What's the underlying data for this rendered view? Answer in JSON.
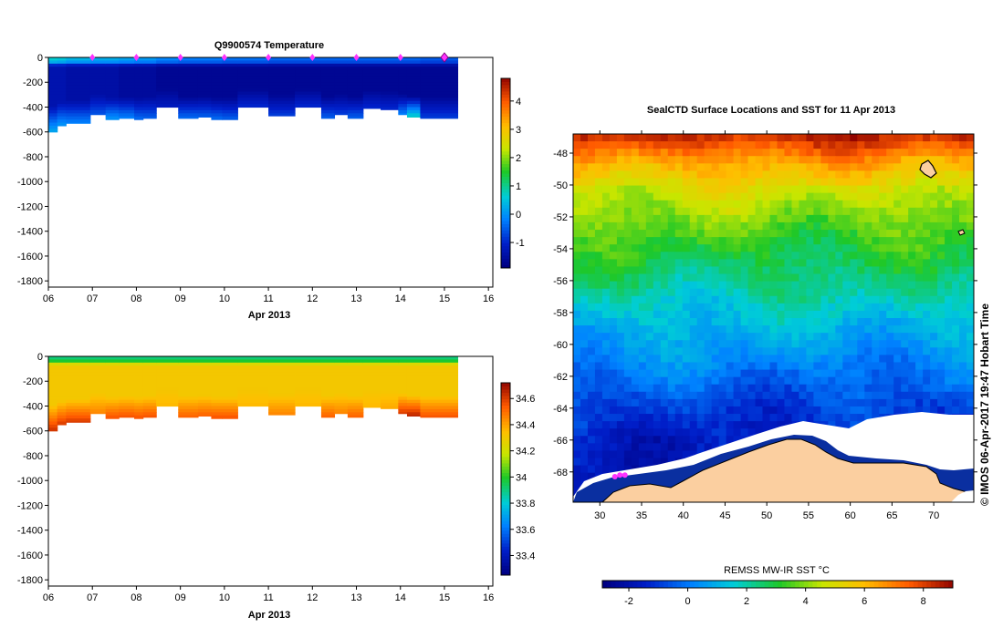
{
  "chart_data": [
    {
      "id": "temp_section",
      "type": "heatmap",
      "title": "Q9900574  Temperature",
      "xlabel": "Apr 2013",
      "x_ticks": [
        "06",
        "07",
        "08",
        "09",
        "10",
        "11",
        "12",
        "13",
        "14",
        "15",
        "16"
      ],
      "xlim": [
        6,
        16.1
      ],
      "y_ticks": [
        0,
        -200,
        -400,
        -600,
        -800,
        -1000,
        -1200,
        -1400,
        -1600,
        -1800
      ],
      "ylim": [
        -1850,
        0
      ],
      "colorbar": {
        "ticks": [
          -1,
          0,
          1,
          2,
          3,
          4
        ],
        "min": -1.9,
        "max": 4.8
      },
      "surface_markers": [
        7,
        8,
        9,
        10,
        11,
        12,
        13,
        14
      ],
      "latest_marker": 15,
      "profiles": [
        {
          "start": 6.0,
          "end": 6.2,
          "max_depth": -600,
          "top": 0.6,
          "core": -1.4,
          "bottom": 0.2
        },
        {
          "start": 6.2,
          "end": 6.4,
          "max_depth": -550,
          "top": 0.5,
          "core": -1.4,
          "bottom": 0.0
        },
        {
          "start": 6.4,
          "end": 6.95,
          "max_depth": -530,
          "top": 0.3,
          "core": -1.5,
          "bottom": -0.2
        },
        {
          "start": 6.95,
          "end": 7.3,
          "max_depth": -460,
          "top": 0.2,
          "core": -1.5,
          "bottom": -0.6
        },
        {
          "start": 7.3,
          "end": 7.6,
          "max_depth": -500,
          "top": 0.2,
          "core": -1.5,
          "bottom": 0.0
        },
        {
          "start": 7.6,
          "end": 7.95,
          "max_depth": -490,
          "top": 0.1,
          "core": -1.6,
          "bottom": -0.2
        },
        {
          "start": 7.95,
          "end": 8.15,
          "max_depth": -500,
          "top": 0.0,
          "core": -1.6,
          "bottom": -0.4
        },
        {
          "start": 8.15,
          "end": 8.45,
          "max_depth": -490,
          "top": 0.0,
          "core": -1.6,
          "bottom": -0.5
        },
        {
          "start": 8.45,
          "end": 8.95,
          "max_depth": -400,
          "top": -0.2,
          "core": -1.7,
          "bottom": -1.2
        },
        {
          "start": 8.95,
          "end": 9.4,
          "max_depth": -490,
          "top": -0.3,
          "core": -1.7,
          "bottom": -0.4
        },
        {
          "start": 9.4,
          "end": 9.7,
          "max_depth": -480,
          "top": -0.3,
          "core": -1.7,
          "bottom": -0.5
        },
        {
          "start": 9.7,
          "end": 9.95,
          "max_depth": -500,
          "top": -0.3,
          "core": -1.7,
          "bottom": -0.4
        },
        {
          "start": 9.95,
          "end": 10.3,
          "max_depth": -500,
          "top": -0.4,
          "core": -1.7,
          "bottom": -0.5
        },
        {
          "start": 10.3,
          "end": 11.0,
          "max_depth": -400,
          "top": -0.4,
          "core": -1.7,
          "bottom": -1.0
        },
        {
          "start": 11.0,
          "end": 11.6,
          "max_depth": -470,
          "top": -0.5,
          "core": -1.7,
          "bottom": -0.8
        },
        {
          "start": 11.6,
          "end": 12.2,
          "max_depth": -400,
          "top": -0.5,
          "core": -1.7,
          "bottom": -1.0
        },
        {
          "start": 12.2,
          "end": 12.5,
          "max_depth": -490,
          "top": -0.5,
          "core": -1.7,
          "bottom": -0.5
        },
        {
          "start": 12.5,
          "end": 12.8,
          "max_depth": -460,
          "top": -0.5,
          "core": -1.7,
          "bottom": -0.8
        },
        {
          "start": 12.8,
          "end": 13.15,
          "max_depth": -490,
          "top": -0.5,
          "core": -1.7,
          "bottom": -0.5
        },
        {
          "start": 13.15,
          "end": 13.55,
          "max_depth": -410,
          "top": -0.5,
          "core": -1.7,
          "bottom": -1.0
        },
        {
          "start": 13.55,
          "end": 13.95,
          "max_depth": -420,
          "top": -0.5,
          "core": -1.7,
          "bottom": -1.0
        },
        {
          "start": 13.95,
          "end": 14.15,
          "max_depth": -460,
          "top": -0.5,
          "core": -1.7,
          "bottom": -0.2
        },
        {
          "start": 14.15,
          "end": 14.45,
          "max_depth": -480,
          "top": -0.5,
          "core": -1.7,
          "bottom": 0.7
        },
        {
          "start": 14.45,
          "end": 15.3,
          "max_depth": -490,
          "top": -0.6,
          "core": -1.7,
          "bottom": -0.8
        }
      ]
    },
    {
      "id": "sal_section",
      "type": "heatmap",
      "title": "",
      "xlabel": "Apr 2013",
      "x_ticks": [
        "06",
        "07",
        "08",
        "09",
        "10",
        "11",
        "12",
        "13",
        "14",
        "15",
        "16"
      ],
      "xlim": [
        6,
        16.1
      ],
      "y_ticks": [
        0,
        -200,
        -400,
        -600,
        -800,
        -1000,
        -1200,
        -1400,
        -1600,
        -1800
      ],
      "ylim": [
        -1850,
        0
      ],
      "colorbar": {
        "ticks": [
          33.4,
          33.6,
          33.8,
          34,
          34.2,
          34.4,
          34.6
        ],
        "min": 33.25,
        "max": 34.72
      },
      "profiles": [
        {
          "start": 6.0,
          "end": 6.2,
          "max_depth": -600,
          "top": 33.9,
          "core": 34.3,
          "bottom": 34.62
        },
        {
          "start": 6.2,
          "end": 6.4,
          "max_depth": -550,
          "top": 33.9,
          "core": 34.3,
          "bottom": 34.6
        },
        {
          "start": 6.4,
          "end": 6.95,
          "max_depth": -530,
          "top": 33.9,
          "core": 34.3,
          "bottom": 34.6
        },
        {
          "start": 6.95,
          "end": 7.3,
          "max_depth": -460,
          "top": 33.9,
          "core": 34.3,
          "bottom": 34.45
        },
        {
          "start": 7.3,
          "end": 7.6,
          "max_depth": -500,
          "top": 33.9,
          "core": 34.3,
          "bottom": 34.55
        },
        {
          "start": 7.6,
          "end": 7.95,
          "max_depth": -490,
          "top": 33.9,
          "core": 34.3,
          "bottom": 34.55
        },
        {
          "start": 7.95,
          "end": 8.15,
          "max_depth": -500,
          "top": 33.9,
          "core": 34.3,
          "bottom": 34.55
        },
        {
          "start": 8.15,
          "end": 8.45,
          "max_depth": -490,
          "top": 33.9,
          "core": 34.3,
          "bottom": 34.55
        },
        {
          "start": 8.45,
          "end": 8.95,
          "max_depth": -400,
          "top": 33.9,
          "core": 34.3,
          "bottom": 34.35
        },
        {
          "start": 8.95,
          "end": 9.4,
          "max_depth": -490,
          "top": 33.9,
          "core": 34.3,
          "bottom": 34.52
        },
        {
          "start": 9.4,
          "end": 9.7,
          "max_depth": -480,
          "top": 33.9,
          "core": 34.3,
          "bottom": 34.52
        },
        {
          "start": 9.7,
          "end": 9.95,
          "max_depth": -500,
          "top": 33.9,
          "core": 34.3,
          "bottom": 34.55
        },
        {
          "start": 9.95,
          "end": 10.3,
          "max_depth": -500,
          "top": 33.9,
          "core": 34.3,
          "bottom": 34.55
        },
        {
          "start": 10.3,
          "end": 11.0,
          "max_depth": -400,
          "top": 33.9,
          "core": 34.3,
          "bottom": 34.35
        },
        {
          "start": 11.0,
          "end": 11.6,
          "max_depth": -470,
          "top": 33.9,
          "core": 34.3,
          "bottom": 34.45
        },
        {
          "start": 11.6,
          "end": 12.2,
          "max_depth": -400,
          "top": 33.9,
          "core": 34.3,
          "bottom": 34.35
        },
        {
          "start": 12.2,
          "end": 12.5,
          "max_depth": -490,
          "top": 33.9,
          "core": 34.3,
          "bottom": 34.52
        },
        {
          "start": 12.5,
          "end": 12.8,
          "max_depth": -460,
          "top": 33.9,
          "core": 34.3,
          "bottom": 34.45
        },
        {
          "start": 12.8,
          "end": 13.15,
          "max_depth": -490,
          "top": 33.9,
          "core": 34.3,
          "bottom": 34.52
        },
        {
          "start": 13.15,
          "end": 13.55,
          "max_depth": -410,
          "top": 33.9,
          "core": 34.3,
          "bottom": 34.35
        },
        {
          "start": 13.55,
          "end": 13.95,
          "max_depth": -420,
          "top": 33.9,
          "core": 34.3,
          "bottom": 34.38
        },
        {
          "start": 13.95,
          "end": 14.15,
          "max_depth": -460,
          "top": 33.9,
          "core": 34.3,
          "bottom": 34.6
        },
        {
          "start": 14.15,
          "end": 14.45,
          "max_depth": -480,
          "top": 33.9,
          "core": 34.3,
          "bottom": 34.65
        },
        {
          "start": 14.45,
          "end": 15.3,
          "max_depth": -490,
          "top": 33.9,
          "core": 34.3,
          "bottom": 34.55
        }
      ]
    },
    {
      "id": "sst_map",
      "type": "heatmap",
      "title": "SealCTD Surface Locations and SST for 11 Apr 2013",
      "x_ticks": [
        "30",
        "35",
        "40",
        "45",
        "50",
        "55",
        "60",
        "65",
        "70"
      ],
      "xlim": [
        26.8,
        74.8
      ],
      "y_ticks": [
        "-48",
        "-50",
        "-52",
        "-54",
        "-56",
        "-58",
        "-60",
        "-62",
        "-64",
        "-66",
        "-68"
      ],
      "ylim": [
        -69.9,
        -46.8
      ],
      "sst_bands": [
        {
          "lat": -47.0,
          "sst": 8.2
        },
        {
          "lat": -48.5,
          "sst": 6.4
        },
        {
          "lat": -50.5,
          "sst": 4.6
        },
        {
          "lat": -53.0,
          "sst": 3.4
        },
        {
          "lat": -56.0,
          "sst": 2.2
        },
        {
          "lat": -58.5,
          "sst": 1.2
        },
        {
          "lat": -61.0,
          "sst": 0.2
        },
        {
          "lat": -63.5,
          "sst": -0.8
        },
        {
          "lat": -66.0,
          "sst": -1.6
        },
        {
          "lat": -69.5,
          "sst": -1.9
        }
      ],
      "seal_positions": [
        {
          "lon": 31.8,
          "lat": -68.3
        },
        {
          "lon": 32.4,
          "lat": -68.2
        },
        {
          "lon": 33.0,
          "lat": -68.2
        }
      ],
      "colorbar": {
        "label": "REMSS MW-IR SST °C",
        "ticks": [
          "-2",
          "0",
          "2",
          "4",
          "6",
          "8"
        ],
        "min": -2.9,
        "max": 9.0
      }
    }
  ],
  "side_label": "© IMOS 06-Apr-2017 19:47 Hobart Time",
  "colors": {
    "land": "#fbcfa0",
    "ice": "#ffffff",
    "seal": "#ff33ff",
    "axis": "#000000"
  }
}
